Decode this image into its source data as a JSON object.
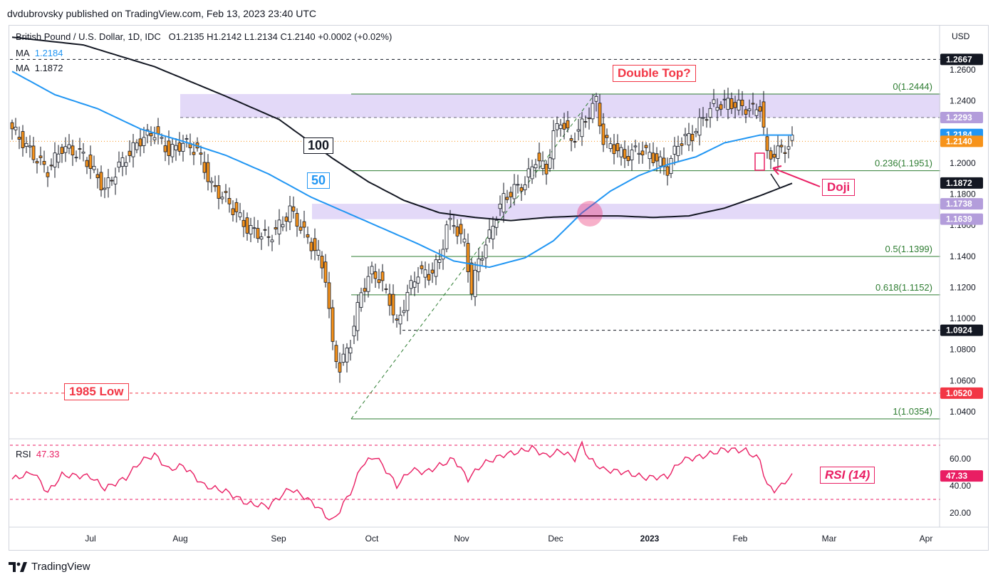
{
  "publisher_line": "dvdubrovsky published on TradingView.com, Feb 13, 2023 23:40 UTC",
  "legend": {
    "symbol": "British Pound / U.S. Dollar, 1D, IDC",
    "ohlc": "O1.2135  H1.2142  L1.2134  C1.2140  +0.0002 (+0.02%)",
    "ma1_label": "MA",
    "ma1_value": "1.2184",
    "ma2_label": "MA",
    "ma2_value": "1.1872",
    "rsi_label": "RSI",
    "rsi_value": "47.33"
  },
  "axis_currency": "USD",
  "annotations": {
    "double_top": "Double Top?",
    "doji": "Doji",
    "low_1985": "1985 Low",
    "ma100": "100",
    "ma50": "50",
    "rsi_title": "RSI (14)"
  },
  "fib_labels": [
    "0(1.2444)",
    "0.236(1.1951)",
    "0.5(1.1399)",
    "0.618(1.1152)",
    "1(1.0354)"
  ],
  "brand": "TradingView",
  "colors": {
    "up": "#ffffff",
    "down": "#f7931a",
    "ma50": "#2196f3",
    "ma100": "#131722",
    "zone": "#d9ccf5",
    "rsi": "#e91e63",
    "fib": "#2e7d32",
    "annotation": "#f23645"
  },
  "chart_data": {
    "type": "candlestick",
    "title": "British Pound / U.S. Dollar, 1D, IDC",
    "y_unit": "USD",
    "ylim": [
      1.022,
      1.29
    ],
    "x_ticks": [
      "Jul",
      "Aug",
      "Sep",
      "Oct",
      "Nov",
      "Dec",
      "2023",
      "Feb",
      "Mar",
      "Apr"
    ],
    "y_ticks": [
      "1.0400",
      "1.0600",
      "1.0800",
      "1.1000",
      "1.1200",
      "1.1400",
      "1.1600",
      "1.1800",
      "1.2000",
      "1.2200",
      "1.2400",
      "1.2600"
    ],
    "price_tags": [
      {
        "label": "1.2667",
        "value": 1.2667,
        "color": "#131722"
      },
      {
        "label": "1.2293",
        "value": 1.2293,
        "color": "#b39ddb"
      },
      {
        "label": "1.2184",
        "value": 1.2184,
        "color": "#2196f3"
      },
      {
        "label": "1.2140",
        "value": 1.214,
        "color": "#f7931a"
      },
      {
        "label": "1.1872",
        "value": 1.1872,
        "color": "#131722"
      },
      {
        "label": "1.1738",
        "value": 1.1738,
        "color": "#b39ddb"
      },
      {
        "label": "1.1639",
        "value": 1.1639,
        "color": "#b39ddb"
      },
      {
        "label": "1.0924",
        "value": 1.0924,
        "color": "#131722"
      },
      {
        "label": "1.0520",
        "value": 1.052,
        "color": "#f23645"
      }
    ],
    "zones": [
      {
        "from": 1.2293,
        "to": 1.2444
      },
      {
        "from": 1.1639,
        "to": 1.1738
      }
    ],
    "levels": [
      {
        "name": "resistance",
        "value": 1.2667
      },
      {
        "name": "1985 Low",
        "value": 1.052
      },
      {
        "name": "support",
        "value": 1.0924
      }
    ],
    "fibonacci": [
      {
        "ratio": "0",
        "value": 1.2444
      },
      {
        "ratio": "0.236",
        "value": 1.1951
      },
      {
        "ratio": "0.5",
        "value": 1.1399
      },
      {
        "ratio": "0.618",
        "value": 1.1152
      },
      {
        "ratio": "1",
        "value": 1.0354
      }
    ],
    "close_series": {
      "name": "GBP/USD close (approx.)",
      "anchors": [
        [
          0,
          1.222
        ],
        [
          6,
          1.205
        ],
        [
          10,
          1.195
        ],
        [
          14,
          1.21
        ],
        [
          20,
          1.205
        ],
        [
          26,
          1.183
        ],
        [
          30,
          1.198
        ],
        [
          36,
          1.215
        ],
        [
          40,
          1.22
        ],
        [
          44,
          1.207
        ],
        [
          48,
          1.213
        ],
        [
          52,
          1.208
        ],
        [
          56,
          1.185
        ],
        [
          60,
          1.177
        ],
        [
          66,
          1.158
        ],
        [
          72,
          1.152
        ],
        [
          76,
          1.162
        ],
        [
          78,
          1.17
        ],
        [
          82,
          1.155
        ],
        [
          86,
          1.14
        ],
        [
          88,
          1.127
        ],
        [
          90,
          1.082
        ],
        [
          92,
          1.068
        ],
        [
          95,
          1.085
        ],
        [
          98,
          1.117
        ],
        [
          101,
          1.13
        ],
        [
          103,
          1.126
        ],
        [
          106,
          1.112
        ],
        [
          108,
          1.095
        ],
        [
          111,
          1.116
        ],
        [
          114,
          1.13
        ],
        [
          117,
          1.128
        ],
        [
          120,
          1.137
        ],
        [
          122,
          1.16
        ],
        [
          124,
          1.161
        ],
        [
          127,
          1.148
        ],
        [
          129,
          1.118
        ],
        [
          131,
          1.137
        ],
        [
          134,
          1.153
        ],
        [
          136,
          1.167
        ],
        [
          138,
          1.177
        ],
        [
          141,
          1.183
        ],
        [
          144,
          1.187
        ],
        [
          147,
          1.203
        ],
        [
          150,
          1.195
        ],
        [
          152,
          1.218
        ],
        [
          154,
          1.228
        ],
        [
          157,
          1.214
        ],
        [
          161,
          1.228
        ],
        [
          164,
          1.24
        ],
        [
          166,
          1.214
        ],
        [
          169,
          1.21
        ],
        [
          172,
          1.204
        ],
        [
          176,
          1.209
        ],
        [
          180,
          1.204
        ],
        [
          184,
          1.196
        ],
        [
          187,
          1.213
        ],
        [
          191,
          1.218
        ],
        [
          194,
          1.229
        ],
        [
          197,
          1.237
        ],
        [
          201,
          1.239
        ],
        [
          205,
          1.236
        ],
        [
          208,
          1.234
        ],
        [
          210,
          1.237
        ],
        [
          212,
          1.205
        ],
        [
          214,
          1.206
        ],
        [
          216,
          1.209
        ],
        [
          218,
          1.211
        ],
        [
          219,
          1.214
        ]
      ]
    },
    "ma50": {
      "name": "MA",
      "last": 1.2184,
      "anchors": [
        [
          0,
          1.259
        ],
        [
          12,
          1.244
        ],
        [
          24,
          1.235
        ],
        [
          36,
          1.222
        ],
        [
          48,
          1.214
        ],
        [
          60,
          1.205
        ],
        [
          72,
          1.193
        ],
        [
          84,
          1.178
        ],
        [
          94,
          1.168
        ],
        [
          104,
          1.158
        ],
        [
          114,
          1.148
        ],
        [
          124,
          1.137
        ],
        [
          134,
          1.133
        ],
        [
          144,
          1.139
        ],
        [
          152,
          1.15
        ],
        [
          160,
          1.168
        ],
        [
          168,
          1.182
        ],
        [
          176,
          1.192
        ],
        [
          184,
          1.199
        ],
        [
          192,
          1.204
        ],
        [
          200,
          1.213
        ],
        [
          210,
          1.218
        ],
        [
          219,
          1.218
        ]
      ]
    },
    "ma100": {
      "name": "MA",
      "last": 1.1872,
      "anchors": [
        [
          0,
          1.281
        ],
        [
          20,
          1.276
        ],
        [
          40,
          1.262
        ],
        [
          60,
          1.243
        ],
        [
          75,
          1.228
        ],
        [
          90,
          1.203
        ],
        [
          100,
          1.188
        ],
        [
          110,
          1.176
        ],
        [
          120,
          1.168
        ],
        [
          130,
          1.165
        ],
        [
          140,
          1.163
        ],
        [
          150,
          1.165
        ],
        [
          160,
          1.166
        ],
        [
          170,
          1.166
        ],
        [
          180,
          1.165
        ],
        [
          190,
          1.166
        ],
        [
          200,
          1.171
        ],
        [
          210,
          1.179
        ],
        [
          219,
          1.187
        ]
      ]
    },
    "rsi": {
      "name": "RSI",
      "period": 14,
      "last": 47.33,
      "ylim": [
        10,
        78
      ],
      "bands": [
        30,
        70
      ],
      "anchors": [
        [
          0,
          45
        ],
        [
          6,
          50
        ],
        [
          10,
          35
        ],
        [
          14,
          48
        ],
        [
          22,
          47
        ],
        [
          26,
          38
        ],
        [
          32,
          46
        ],
        [
          36,
          58
        ],
        [
          40,
          63
        ],
        [
          44,
          52
        ],
        [
          48,
          55
        ],
        [
          54,
          40
        ],
        [
          60,
          36
        ],
        [
          66,
          27
        ],
        [
          72,
          25
        ],
        [
          78,
          38
        ],
        [
          82,
          32
        ],
        [
          86,
          24
        ],
        [
          88,
          18
        ],
        [
          90,
          14
        ],
        [
          92,
          22
        ],
        [
          96,
          40
        ],
        [
          98,
          55
        ],
        [
          102,
          62
        ],
        [
          106,
          48
        ],
        [
          108,
          40
        ],
        [
          112,
          52
        ],
        [
          116,
          50
        ],
        [
          120,
          55
        ],
        [
          124,
          60
        ],
        [
          128,
          45
        ],
        [
          132,
          56
        ],
        [
          138,
          63
        ],
        [
          142,
          65
        ],
        [
          146,
          68
        ],
        [
          150,
          62
        ],
        [
          154,
          66
        ],
        [
          158,
          60
        ],
        [
          160,
          71
        ],
        [
          162,
          60
        ],
        [
          166,
          52
        ],
        [
          172,
          50
        ],
        [
          178,
          46
        ],
        [
          184,
          47
        ],
        [
          188,
          59
        ],
        [
          194,
          62
        ],
        [
          200,
          67
        ],
        [
          206,
          66
        ],
        [
          210,
          59
        ],
        [
          212,
          40
        ],
        [
          214,
          37
        ],
        [
          216,
          40
        ],
        [
          218,
          46
        ],
        [
          219,
          47
        ]
      ]
    }
  }
}
